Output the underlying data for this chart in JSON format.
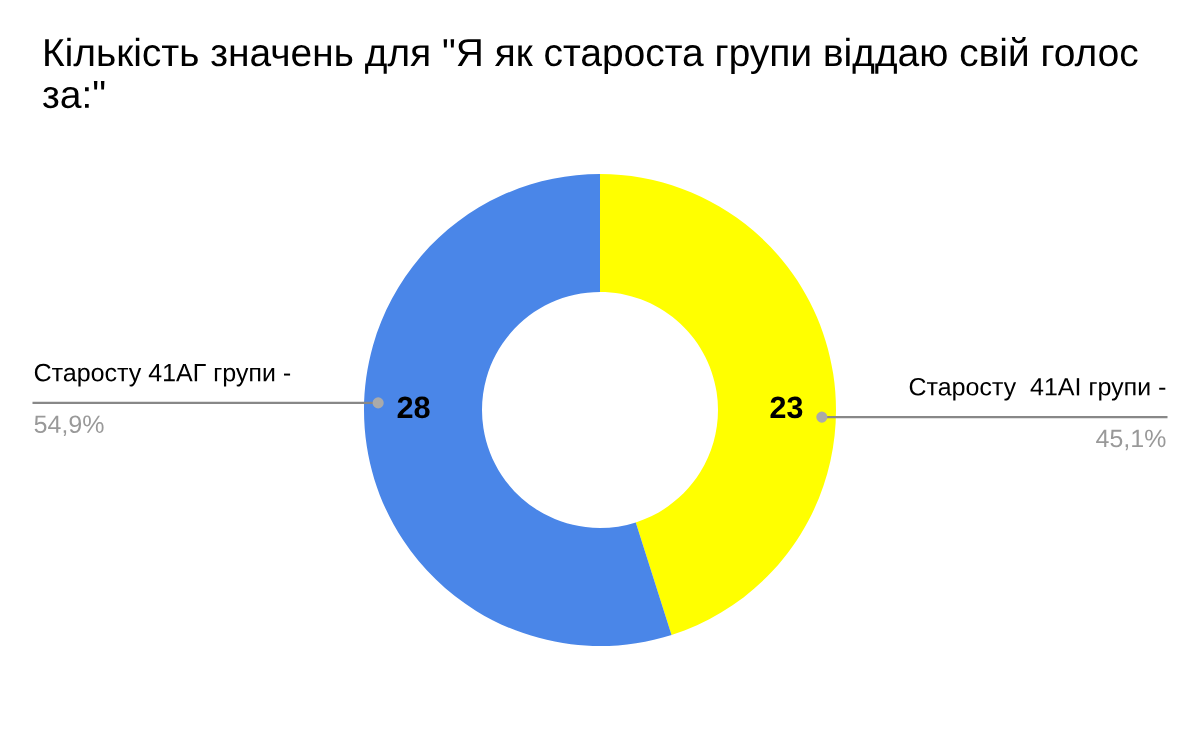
{
  "chart_data": {
    "type": "donut",
    "title": "Кількість значень для \"Я як староста групи віддаю свій голос за:\"",
    "categories": [
      "Старосту  41АІ групи -",
      "Старосту 41АГ групи -"
    ],
    "values": [
      23,
      28
    ],
    "colors": [
      "#ffff00",
      "#4a86e8"
    ],
    "data_labels": true,
    "annotations": [
      "45,1%",
      "54,9%"
    ],
    "legend": false
  }
}
